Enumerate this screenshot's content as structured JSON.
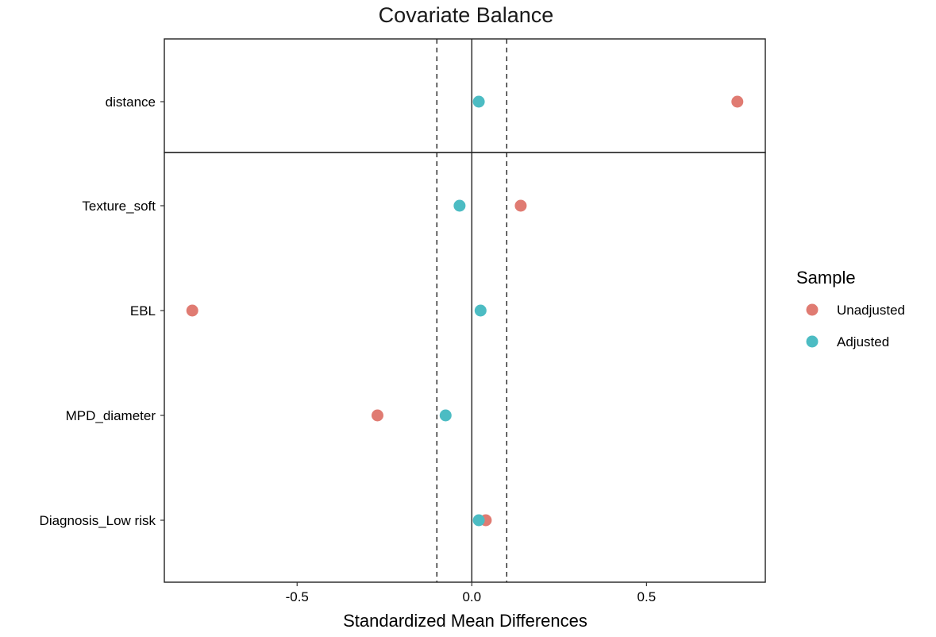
{
  "chart_data": {
    "type": "scatter",
    "title": "Covariate Balance",
    "xlabel": "Standardized Mean Differences",
    "ylabel": "",
    "xlim": [
      -0.88,
      0.84
    ],
    "xticks": [
      -0.5,
      0.0,
      0.5
    ],
    "xtick_labels": [
      "-0.5",
      "0.0",
      "0.5"
    ],
    "threshold_lines": [
      -0.1,
      0.1
    ],
    "zero_line": 0,
    "categories": [
      "distance",
      "Texture_soft",
      "EBL",
      "MPD_diameter",
      "Diagnosis_Low risk"
    ],
    "series": [
      {
        "name": "Unadjusted",
        "color": "#E07B72",
        "values": [
          0.76,
          0.14,
          -0.8,
          -0.27,
          0.04
        ]
      },
      {
        "name": "Adjusted",
        "color": "#4CBCC3",
        "values": [
          0.02,
          -0.035,
          0.025,
          -0.075,
          0.02
        ]
      }
    ],
    "legend": {
      "title": "Sample",
      "position": "right"
    },
    "grid": false
  }
}
